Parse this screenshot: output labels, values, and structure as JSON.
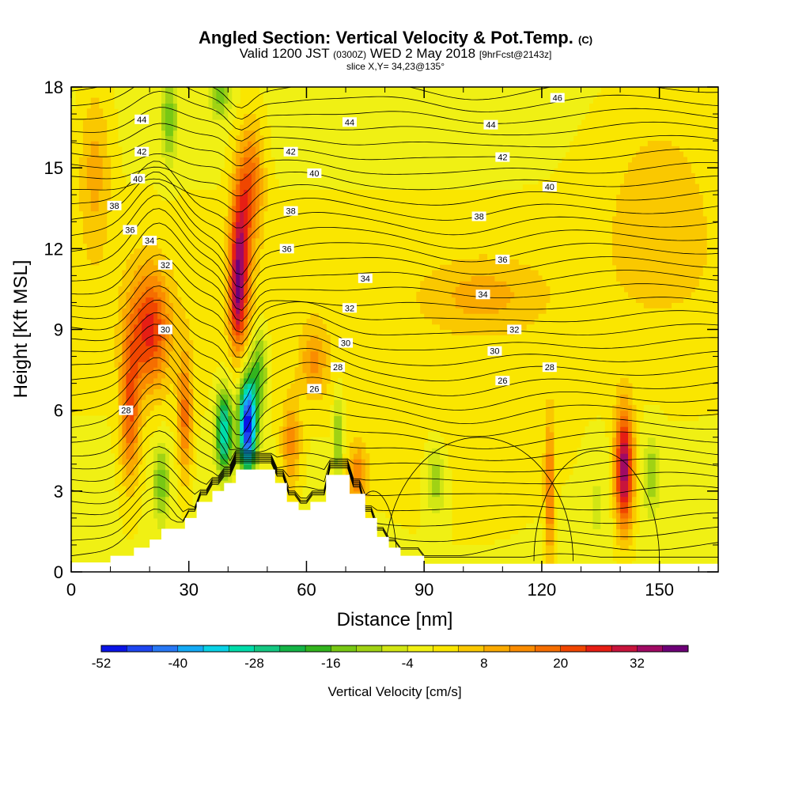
{
  "header": {
    "title": "Angled Section: Vertical Velocity & Pot.Temp.",
    "title_mark": "(C)",
    "valid_prefix": "Valid 1200 JST",
    "valid_utc": "(0300Z)",
    "valid_date": "WED 2 May 2018",
    "forecast": "[9hrFcst@2143z]",
    "slice": "slice X,Y= 34,23@135°"
  },
  "chart_data": {
    "type": "heatmap",
    "xlabel": "Distance [nm]",
    "ylabel": "Height [Kft MSL]",
    "xlim": [
      0,
      165
    ],
    "ylim": [
      0,
      18
    ],
    "x_ticks": [
      0,
      30,
      60,
      90,
      120,
      150
    ],
    "y_ticks": [
      0,
      3,
      6,
      9,
      12,
      15,
      18
    ],
    "grid": false,
    "terrain_steps": [
      [
        0,
        0
      ],
      [
        10,
        0.6
      ],
      [
        16,
        0.6
      ],
      [
        16,
        0.9
      ],
      [
        20,
        0.9
      ],
      [
        20,
        1.2
      ],
      [
        23,
        1.2
      ],
      [
        23,
        1.6
      ],
      [
        29,
        1.6
      ],
      [
        29,
        2.0
      ],
      [
        32,
        2.0
      ],
      [
        32,
        2.6
      ],
      [
        36,
        2.6
      ],
      [
        36,
        3.0
      ],
      [
        39,
        3.0
      ],
      [
        39,
        3.3
      ],
      [
        42,
        3.3
      ],
      [
        42,
        3.8
      ],
      [
        52,
        3.8
      ],
      [
        52,
        3.3
      ],
      [
        55,
        3.3
      ],
      [
        55,
        2.6
      ],
      [
        58,
        2.6
      ],
      [
        58,
        2.3
      ],
      [
        61,
        2.3
      ],
      [
        61,
        2.6
      ],
      [
        65,
        2.6
      ],
      [
        65,
        3.6
      ],
      [
        71,
        3.6
      ],
      [
        71,
        2.9
      ],
      [
        75,
        2.9
      ],
      [
        75,
        2.0
      ],
      [
        78,
        2.0
      ],
      [
        78,
        1.3
      ],
      [
        81,
        1.3
      ],
      [
        81,
        0.9
      ],
      [
        84,
        0.9
      ],
      [
        84,
        0.6
      ],
      [
        90,
        0.6
      ],
      [
        90,
        0.3
      ],
      [
        165,
        0.3
      ]
    ],
    "colorbar": {
      "label": "Vertical Velocity [cm/s]",
      "tick_labels": [
        "-52",
        "-40",
        "-28",
        "-16",
        "-4",
        "8",
        "20",
        "32"
      ],
      "levels": [
        -52,
        -48,
        -44,
        -40,
        -36,
        -32,
        -28,
        -24,
        -20,
        -16,
        -12,
        -8,
        -4,
        0,
        4,
        8,
        12,
        16,
        20,
        24,
        28,
        32,
        36
      ],
      "colors": [
        "#0a14e6",
        "#1e46f0",
        "#2878f5",
        "#14aaf5",
        "#0ad2e6",
        "#00dcaa",
        "#14c882",
        "#14b446",
        "#32b41e",
        "#78c814",
        "#a0d214",
        "#d2e614",
        "#f0f014",
        "#fae600",
        "#fac800",
        "#faaa00",
        "#fa8c00",
        "#f56e00",
        "#f04600",
        "#e61e14",
        "#c8143c",
        "#a00a64",
        "#6e0078"
      ]
    },
    "features": [
      {
        "x": 20,
        "y": 9.0,
        "sx": 5,
        "sy": 2.2,
        "w": 24
      },
      {
        "x": 15,
        "y": 6.0,
        "sx": 2.5,
        "sy": 2.8,
        "w": 20
      },
      {
        "x": 29,
        "y": 5.8,
        "sx": 1.8,
        "sy": 2.3,
        "w": 18
      },
      {
        "x": 43,
        "y": 11.5,
        "sx": 2.5,
        "sy": 3.0,
        "w": 32
      },
      {
        "x": 46,
        "y": 14.5,
        "sx": 3,
        "sy": 2.2,
        "w": 18
      },
      {
        "x": 42,
        "y": 10.0,
        "sx": 1.5,
        "sy": 1.5,
        "w": 12
      },
      {
        "x": 45,
        "y": 5.5,
        "sx": 2.2,
        "sy": 1.8,
        "w": -52
      },
      {
        "x": 39,
        "y": 5.2,
        "sx": 2,
        "sy": 1.5,
        "w": -32
      },
      {
        "x": 48,
        "y": 7.5,
        "sx": 2,
        "sy": 1.5,
        "w": -16
      },
      {
        "x": 23,
        "y": 3.3,
        "sx": 2,
        "sy": 1.4,
        "w": -14
      },
      {
        "x": 25,
        "y": 16.8,
        "sx": 2,
        "sy": 1.6,
        "w": -14
      },
      {
        "x": 38,
        "y": 17.8,
        "sx": 2.5,
        "sy": 0.9,
        "w": -14
      },
      {
        "x": 68,
        "y": 5.0,
        "sx": 1.0,
        "sy": 1.5,
        "w": -15
      },
      {
        "x": 56,
        "y": 4.8,
        "sx": 2.4,
        "sy": 1.7,
        "w": 14
      },
      {
        "x": 62,
        "y": 7.8,
        "sx": 3.5,
        "sy": 1.3,
        "w": 12
      },
      {
        "x": 73,
        "y": 3.5,
        "sx": 2.5,
        "sy": 1.2,
        "w": 16
      },
      {
        "x": 93,
        "y": 3.5,
        "sx": 3,
        "sy": 1.5,
        "w": -12
      },
      {
        "x": 122,
        "y": 3.0,
        "sx": 1.2,
        "sy": 2.6,
        "w": 18
      },
      {
        "x": 141,
        "y": 3.8,
        "sx": 2.3,
        "sy": 2.2,
        "w": 36
      },
      {
        "x": 148,
        "y": 3.6,
        "sx": 2,
        "sy": 1.5,
        "w": -10
      },
      {
        "x": 105,
        "y": 10.3,
        "sx": 14,
        "sy": 1.3,
        "w": 8
      },
      {
        "x": 150,
        "y": 14.0,
        "sx": 16,
        "sy": 4.0,
        "w": 6
      },
      {
        "x": 100,
        "y": 4.5,
        "sx": 22,
        "sy": 3.0,
        "w": 4
      },
      {
        "x": 6,
        "y": 15.0,
        "sx": 4,
        "sy": 3,
        "w": 10
      },
      {
        "x": 134,
        "y": 2.5,
        "sx": 3,
        "sy": 2,
        "w": -4
      }
    ],
    "theta_contours": [
      {
        "level": 26,
        "base": 6.5,
        "labels": [
          [
            62,
            6.8,
            "26"
          ],
          [
            110,
            7.1,
            "26"
          ]
        ]
      },
      {
        "level": 28,
        "base": 7.1,
        "labels": [
          [
            14,
            6.0,
            "28"
          ],
          [
            68,
            7.6,
            "28"
          ],
          [
            122,
            7.6,
            "28"
          ]
        ]
      },
      {
        "level": 30,
        "base": 8.1,
        "labels": [
          [
            24,
            9.0,
            "30"
          ],
          [
            70,
            8.5,
            "30"
          ],
          [
            108,
            8.2,
            "30"
          ]
        ]
      },
      {
        "level": 32,
        "base": 9.0,
        "labels": [
          [
            24,
            11.4,
            "32"
          ],
          [
            71,
            9.8,
            "32"
          ],
          [
            113,
            9.0,
            "32"
          ]
        ]
      },
      {
        "level": 34,
        "base": 10.3,
        "labels": [
          [
            20,
            12.3,
            "34"
          ],
          [
            75,
            10.9,
            "34"
          ],
          [
            105,
            10.3,
            "34"
          ]
        ]
      },
      {
        "level": 36,
        "base": 11.5,
        "labels": [
          [
            15,
            12.7,
            "36"
          ],
          [
            55,
            12.0,
            "36"
          ],
          [
            110,
            11.6,
            "36"
          ]
        ]
      },
      {
        "level": 38,
        "base": 13.2,
        "labels": [
          [
            11,
            13.6,
            "38"
          ],
          [
            56,
            13.4,
            "38"
          ],
          [
            104,
            13.2,
            "38"
          ]
        ]
      },
      {
        "level": 40,
        "base": 14.2,
        "labels": [
          [
            17,
            14.6,
            "40"
          ],
          [
            62,
            14.8,
            "40"
          ],
          [
            122,
            14.3,
            "40"
          ]
        ]
      },
      {
        "level": 42,
        "base": 15.5,
        "labels": [
          [
            18,
            15.6,
            "42"
          ],
          [
            56,
            15.6,
            "42"
          ],
          [
            110,
            15.4,
            "42"
          ]
        ]
      },
      {
        "level": 44,
        "base": 16.8,
        "labels": [
          [
            18,
            16.8,
            "44"
          ],
          [
            71,
            16.7,
            "44"
          ],
          [
            107,
            16.6,
            "44"
          ]
        ]
      },
      {
        "level": 46,
        "base": 17.5,
        "labels": [
          [
            124,
            17.6,
            "46"
          ]
        ]
      }
    ]
  }
}
